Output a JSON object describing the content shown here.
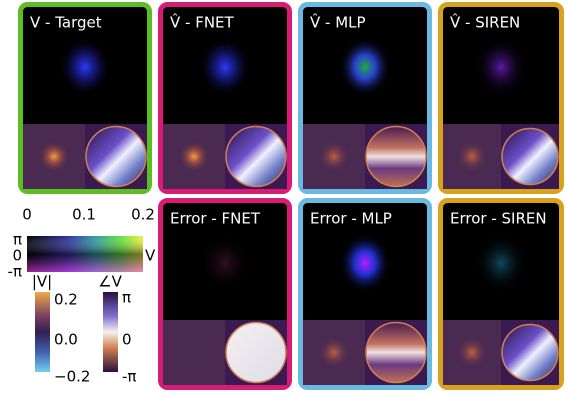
{
  "panels": [
    {
      "title": "V - Target",
      "color": "#5cbd24"
    },
    {
      "title": "V̂ - FNET",
      "color": "#d81b77"
    },
    {
      "title": "V̂ - MLP",
      "color": "#6ab9e2"
    },
    {
      "title": "V̂ - SIREN",
      "color": "#d9a21e"
    },
    {
      "title": "Error - FNET",
      "color": "#d81b77"
    },
    {
      "title": "Error - MLP",
      "color": "#6ab9e2"
    },
    {
      "title": "Error - SIREN",
      "color": "#d9a21e"
    }
  ],
  "colorbar2d": {
    "top_labels": [
      "0",
      "0.1",
      "0.2"
    ],
    "side_labels": [
      "π",
      "0",
      "-π"
    ],
    "label": "V"
  },
  "magnitude_bar": {
    "label": "|V|",
    "ticks": [
      "0.2",
      "0.0",
      "−0.2"
    ]
  },
  "phase_bar": {
    "label": "∠V",
    "ticks": [
      "π",
      "0",
      "-π"
    ]
  }
}
